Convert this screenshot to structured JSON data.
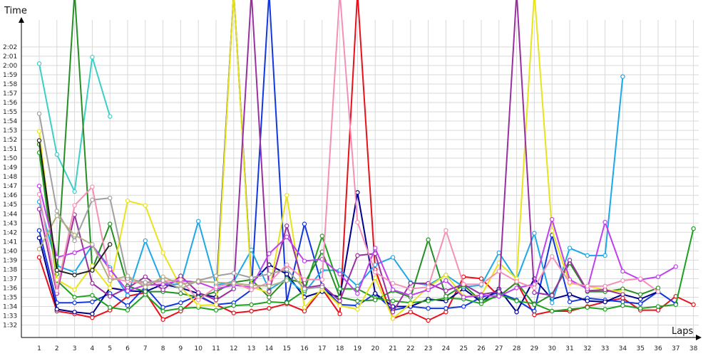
{
  "chart_data": {
    "type": "line",
    "title": "",
    "xlabel": "Laps",
    "ylabel": "Time",
    "grid": true,
    "x_categories": [
      "1",
      "2",
      "3",
      "4",
      "5",
      "6",
      "7",
      "8",
      "9",
      "10",
      "11",
      "12",
      "13",
      "14",
      "15",
      "16",
      "17",
      "18",
      "19",
      "20",
      "21",
      "22",
      "23",
      "24",
      "25",
      "26",
      "27",
      "28",
      "29",
      "30",
      "31",
      "32",
      "33",
      "34",
      "35",
      "36",
      "37",
      "38"
    ],
    "y_tick_labels": [
      "1:32",
      "1:33",
      "1:34",
      "1:35",
      "1:36",
      "1:37",
      "1:38",
      "1:39",
      "1:40",
      "1:41",
      "1:42",
      "1:43",
      "1:44",
      "1:45",
      "1:46",
      "1:47",
      "1:48",
      "1:49",
      "1:50",
      "1:51",
      "1:52",
      "1:53",
      "1:54",
      "1:55",
      "1:56",
      "1:57",
      "1:58",
      "1:59",
      "2:00",
      "2:01",
      "2:02"
    ],
    "y_range_seconds": [
      90.6,
      123.6
    ],
    "series": [
      {
        "color": "#e8101a",
        "values": [
          99.3,
          93.5,
          93.2,
          92.8,
          93.6,
          95.1,
          95.5,
          92.6,
          93.5,
          95.1,
          94.2,
          93.3,
          93.5,
          93.8,
          94.3,
          93.5,
          95.9,
          93.2,
          200,
          98.0,
          92.7,
          93.4,
          92.5,
          93.4,
          97.2,
          97.0,
          95.1,
          96.6,
          93.1,
          93.5,
          93.5,
          94.0,
          94.5,
          94.9,
          93.6,
          93.6,
          95.1,
          94.2
        ]
      },
      {
        "color": "#1238e0",
        "values": [
          102.2,
          94.4,
          94.4,
          94.5,
          95.4,
          94.1,
          96.1,
          93.9,
          94.4,
          95.2,
          94.2,
          94.4,
          95.8,
          200,
          94.5,
          102.9,
          96.2,
          94.2,
          94.1,
          95.4,
          93.6,
          94.0,
          93.8,
          93.8,
          94.0,
          95.0,
          95.5,
          94.7,
          93.5,
          101.7,
          94.5,
          94.9,
          94.7,
          94.5,
          94.3,
          95.6,
          94.3,
          null
        ]
      },
      {
        "color": "#00008b",
        "values": [
          101.4,
          93.7,
          93.4,
          93.2,
          96.0,
          95.7,
          95.6,
          96.4,
          96.0,
          95.4,
          95.0,
          149.6,
          96.5,
          98.5,
          97.5,
          95.0,
          95.6,
          95.0,
          106.3,
          95.4,
          94.0,
          94.0,
          94.8,
          94.6,
          95.9,
          94.5,
          95.9,
          93.4,
          97.0,
          94.8,
          95.3,
          94.6,
          94.5,
          95.3,
          94.8,
          95.6,
          null,
          null
        ]
      },
      {
        "color": "#1ea8e8",
        "values": [
          105.3,
          98.4,
          97.7,
          100.6,
          98.2,
          95.2,
          101.1,
          96.4,
          96.4,
          103.2,
          96.3,
          96.7,
          100.1,
          95.8,
          97.0,
          95.5,
          97.9,
          97.9,
          96.2,
          98.5,
          99.3,
          96.6,
          96.3,
          97.4,
          96.1,
          96.3,
          99.8,
          96.9,
          101.9,
          94.4,
          100.3,
          99.5,
          99.5,
          118.8,
          null,
          null,
          null,
          null
        ]
      },
      {
        "color": "#3ccfc8",
        "values": [
          120.2,
          110.4,
          106.4,
          120.9,
          114.5,
          null,
          null,
          null,
          null,
          null,
          null,
          null,
          null,
          null,
          null,
          null,
          null,
          null,
          null,
          null,
          null,
          null,
          null,
          null,
          null,
          null,
          null,
          null,
          null,
          null,
          null,
          null,
          null,
          null,
          null,
          null,
          null,
          null
        ]
      },
      {
        "color": "#1ea020",
        "values": [
          110.6,
          96.8,
          95.0,
          95.2,
          93.9,
          93.6,
          95.3,
          93.5,
          93.8,
          93.9,
          93.6,
          94.1,
          94.2,
          94.5,
          94.4,
          95.7,
          101.6,
          95.9,
          95.9,
          94.9,
          94.6,
          94.4,
          94.6,
          94.9,
          94.8,
          94.3,
          95.3,
          94.6,
          94.3,
          93.5,
          93.7,
          93.9,
          93.7,
          94.1,
          93.8,
          94.0,
          94.2,
          102.4
        ]
      },
      {
        "color": "#258f25",
        "values": [
          111.5,
          97.5,
          200,
          98.0,
          102.9,
          96.2,
          95.6,
          95.6,
          95.4,
          95.0,
          95.6,
          96.6,
          96.9,
          95.0,
          97.0,
          96.5,
          99.9,
          95.0,
          94.6,
          94.7,
          95.7,
          95.0,
          101.2,
          95.1,
          96.3,
          94.6,
          95.1,
          96.6,
          94.2,
          95.3,
          98.7,
          95.6,
          95.6,
          95.9,
          95.3,
          96.0,
          null,
          null
        ]
      },
      {
        "color": "#e8e41c",
        "values": [
          112.9,
          96.9,
          95.8,
          98.4,
          96.0,
          105.4,
          104.9,
          99.8,
          96.1,
          94.1,
          94.2,
          200,
          96.1,
          95.5,
          106.0,
          93.9,
          95.9,
          94.1,
          93.7,
          97.1,
          92.7,
          94.3,
          96.1,
          97.4,
          95.1,
          95.2,
          98.7,
          97.0,
          200,
          102.2,
          96.5,
          96.2,
          95.8,
          95.6,
          null,
          null,
          null,
          null
        ]
      },
      {
        "color": "#9a30a0",
        "values": [
          104.5,
          95.4,
          103.9,
          96.5,
          95.1,
          96.0,
          97.2,
          95.8,
          97.3,
          95.5,
          94.7,
          95.9,
          200,
          95.6,
          102.7,
          96.0,
          96.3,
          94.6,
          99.5,
          99.7,
          93.4,
          96.5,
          96.5,
          95.7,
          96.4,
          95.3,
          95.6,
          200,
          95.5,
          95.2,
          99.0,
          95.7,
          95.8,
          95.3,
          null,
          null,
          null,
          null
        ]
      },
      {
        "color": "#c040ee",
        "values": [
          107.0,
          99.3,
          99.8,
          100.6,
          98.0,
          95.7,
          96.3,
          96.4,
          96.8,
          96.6,
          95.9,
          96.3,
          96.1,
          99.7,
          101.5,
          98.9,
          99.1,
          97.5,
          95.4,
          100.3,
          95.8,
          95.2,
          95.8,
          96.8,
          95.0,
          95.2,
          95.1,
          96.0,
          96.4,
          103.4,
          96.9,
          95.9,
          103.1,
          97.8,
          96.9,
          97.2,
          98.3,
          null
        ]
      },
      {
        "color": "#f490b8",
        "values": [
          106.1,
          95.7,
          104.9,
          106.9,
          97.1,
          96.7,
          96.5,
          96.7,
          96.9,
          94.7,
          96.1,
          96.6,
          95.8,
          96.6,
          98.5,
          96.9,
          96.9,
          200,
          103.1,
          97.7,
          96.5,
          95.9,
          96.1,
          102.2,
          96.4,
          96.4,
          97.8,
          96.7,
          96.0,
          99.4,
          96.6,
          96.2,
          96.2,
          96.8,
          97.0,
          95.6,
          null,
          null
        ]
      },
      {
        "color": "#a0a0a0",
        "values": [
          114.8,
          104.3,
          101.1,
          105.5,
          105.7,
          97.0,
          96.6,
          96.8,
          95.9,
          96.8,
          97.3,
          97.6,
          97.1,
          97.5,
          98.0,
          95.9,
          96.1,
          null,
          null,
          null,
          null,
          null,
          null,
          null,
          null,
          null,
          null,
          null,
          null,
          null,
          null,
          null,
          null,
          null,
          null,
          null,
          null,
          null
        ]
      },
      {
        "color": "#b0b080",
        "values": [
          100.2,
          103.8,
          101.7,
          100.7,
          96.8,
          97.3,
          96.1,
          97.2,
          96.4,
          96.7,
          96.6,
          96.5,
          96.3,
          96.2,
          96.8,
          null,
          null,
          null,
          null,
          null,
          null,
          null,
          null,
          null,
          null,
          null,
          null,
          null,
          null,
          null,
          null,
          null,
          null,
          null,
          null,
          null,
          null,
          null
        ]
      },
      {
        "color": "#222222",
        "values": [
          111.9,
          97.9,
          97.4,
          97.9,
          100.7,
          null,
          null,
          null,
          null,
          null,
          null,
          null,
          null,
          null,
          null,
          null,
          null,
          null,
          null,
          null,
          null,
          null,
          null,
          null,
          null,
          null,
          null,
          null,
          null,
          null,
          null,
          null,
          null,
          null,
          null,
          null,
          null,
          null
        ]
      }
    ]
  }
}
